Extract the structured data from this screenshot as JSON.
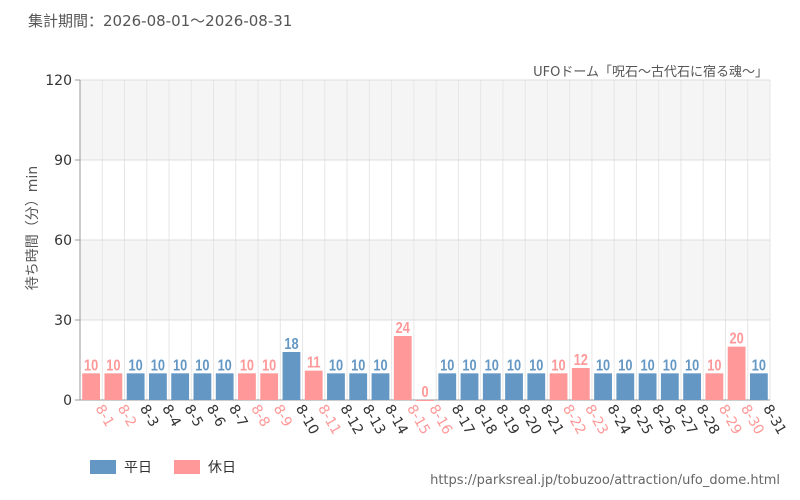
{
  "period_label": "集計期間：2026-08-01～2026-08-31",
  "source_url": "https://parksreal.jp/tobuzoo/attraction/ufo_dome.html",
  "colors": {
    "weekday": "#6497c4",
    "holiday": "#ff9898",
    "grid": "#dddddd",
    "band": "#f5f5f5"
  },
  "chart_data": {
    "type": "bar",
    "title": "UFOドーム「呪石～古代石に宿る魂～」",
    "ylabel": "待ち時間（分）min",
    "xlabel": "",
    "ylim": [
      0,
      120
    ],
    "yticks": [
      0,
      30,
      60,
      90,
      120
    ],
    "categories": [
      "8-1",
      "8-2",
      "8-3",
      "8-4",
      "8-5",
      "8-6",
      "8-7",
      "8-8",
      "8-9",
      "8-10",
      "8-11",
      "8-12",
      "8-13",
      "8-14",
      "8-15",
      "8-16",
      "8-17",
      "8-18",
      "8-19",
      "8-20",
      "8-21",
      "8-22",
      "8-23",
      "8-24",
      "8-25",
      "8-26",
      "8-27",
      "8-28",
      "8-29",
      "8-30",
      "8-31"
    ],
    "values": [
      10,
      10,
      10,
      10,
      10,
      10,
      10,
      10,
      10,
      18,
      11,
      10,
      10,
      10,
      24,
      0,
      10,
      10,
      10,
      10,
      10,
      10,
      12,
      10,
      10,
      10,
      10,
      10,
      10,
      20,
      10
    ],
    "day_type": [
      "holiday",
      "holiday",
      "weekday",
      "weekday",
      "weekday",
      "weekday",
      "weekday",
      "holiday",
      "holiday",
      "weekday",
      "holiday",
      "weekday",
      "weekday",
      "weekday",
      "holiday",
      "holiday",
      "weekday",
      "weekday",
      "weekday",
      "weekday",
      "weekday",
      "holiday",
      "holiday",
      "weekday",
      "weekday",
      "weekday",
      "weekday",
      "weekday",
      "holiday",
      "holiday",
      "weekday"
    ],
    "legend": [
      {
        "key": "weekday",
        "label": "平日"
      },
      {
        "key": "holiday",
        "label": "休日"
      }
    ]
  }
}
